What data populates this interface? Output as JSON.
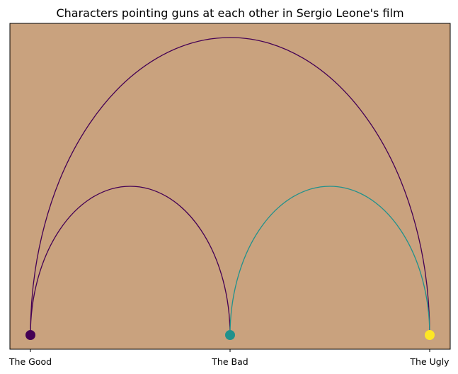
{
  "chart_data": {
    "type": "arc-diagram",
    "title": "Characters pointing guns at each other in Sergio Leone's film",
    "background_color": "#c9a27e",
    "nodes": [
      {
        "label": "The Good",
        "color": "#440154"
      },
      {
        "label": "The Bad",
        "color": "#21918c"
      },
      {
        "label": "The Ugly",
        "color": "#fde725"
      }
    ],
    "edges": [
      {
        "source": 0,
        "target": 1,
        "color": "#440154"
      },
      {
        "source": 0,
        "target": 2,
        "color": "#440154"
      },
      {
        "source": 1,
        "target": 2,
        "color": "#21918c"
      }
    ]
  }
}
